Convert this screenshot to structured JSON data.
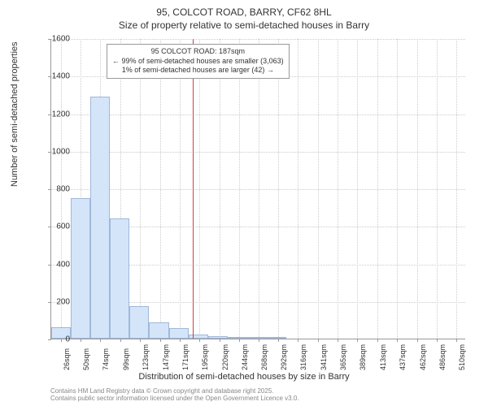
{
  "title_main": "95, COLCOT ROAD, BARRY, CF62 8HL",
  "title_sub": "Size of property relative to semi-detached houses in Barry",
  "y_axis_label": "Number of semi-detached properties",
  "x_axis_label": "Distribution of semi-detached houses by size in Barry",
  "annotation": {
    "line1": "95 COLCOT ROAD: 187sqm",
    "line2": "← 99% of semi-detached houses are smaller (3,063)",
    "line3": "1% of semi-detached houses are larger (42) →"
  },
  "footer_line1": "Contains HM Land Registry data © Crown copyright and database right 2025.",
  "footer_line2": "Contains public sector information licensed under the Open Government Licence v3.0.",
  "chart": {
    "type": "histogram",
    "ylim": [
      0,
      1600
    ],
    "ytick_step": 200,
    "yticks": [
      0,
      200,
      400,
      600,
      800,
      1000,
      1200,
      1400,
      1600
    ],
    "xlim": [
      14,
      522
    ],
    "xtick_step": 24,
    "xticks": [
      26,
      50,
      74,
      99,
      123,
      147,
      171,
      195,
      220,
      244,
      268,
      292,
      316,
      341,
      365,
      389,
      413,
      437,
      462,
      486,
      510
    ],
    "xtick_suffix": "sqm",
    "bar_color": "#d4e5fa",
    "bar_border_color": "#a0b8d8",
    "marker_color": "#d04040",
    "marker_x": 187,
    "grid_color": "#cccccc",
    "background_color": "#ffffff",
    "bin_width": 24,
    "bins": [
      {
        "x_start": 14,
        "count": 60
      },
      {
        "x_start": 38,
        "count": 750
      },
      {
        "x_start": 62,
        "count": 1290
      },
      {
        "x_start": 86,
        "count": 640
      },
      {
        "x_start": 110,
        "count": 175
      },
      {
        "x_start": 134,
        "count": 85
      },
      {
        "x_start": 158,
        "count": 55
      },
      {
        "x_start": 182,
        "count": 20
      },
      {
        "x_start": 206,
        "count": 15
      },
      {
        "x_start": 230,
        "count": 8
      },
      {
        "x_start": 254,
        "count": 5
      },
      {
        "x_start": 278,
        "count": 3
      },
      {
        "x_start": 302,
        "count": 0
      },
      {
        "x_start": 326,
        "count": 0
      }
    ]
  }
}
